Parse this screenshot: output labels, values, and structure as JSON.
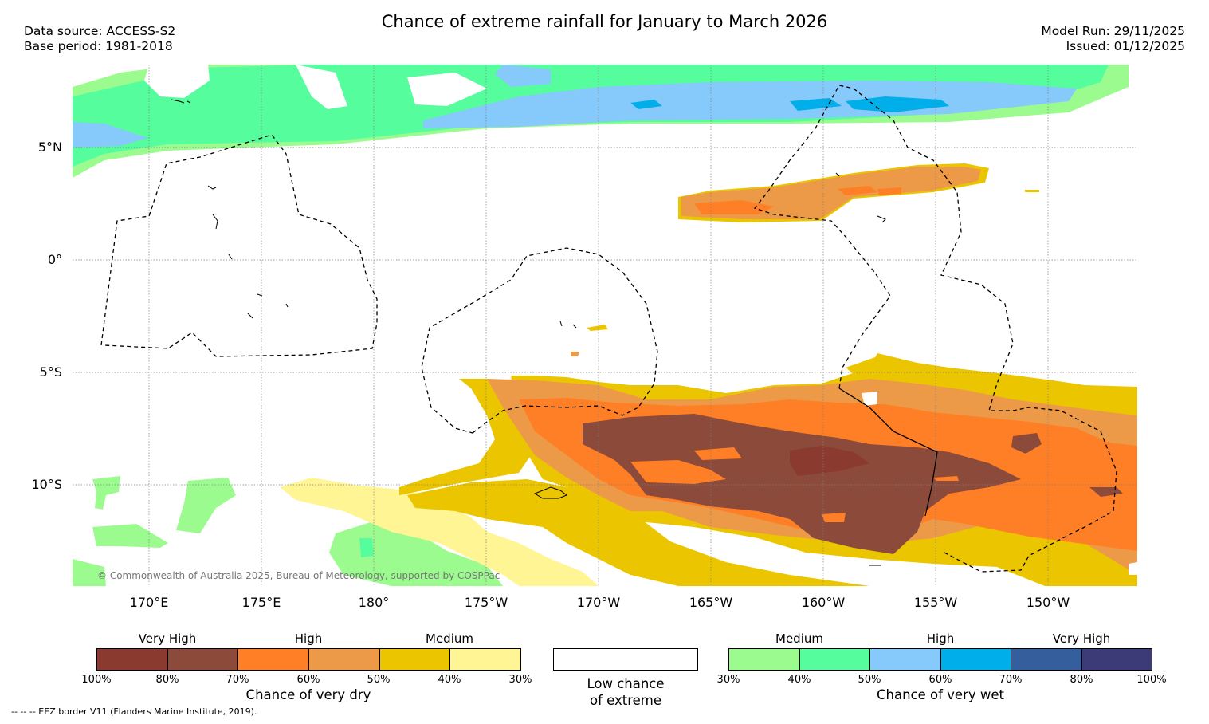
{
  "title": "Chance of extreme rainfall for January to March 2026",
  "data_source": "Data source: ACCESS-S2",
  "base_period": "Base period: 1981-2018",
  "model_run": "Model Run: 29/11/2025",
  "issued": "Issued: 01/12/2025",
  "copyright": "© Commonwealth of Australia 2025, Bureau of Meteorology, supported by COSPPac",
  "footnote": "--  --  -- EEZ border V11 (Flanders Marine Institute, 2019).",
  "lat_labels": [
    "5°N",
    "0°",
    "5°S",
    "10°S"
  ],
  "lon_labels": [
    "170°E",
    "175°E",
    "180°",
    "175°W",
    "170°W",
    "165°W",
    "160°W",
    "155°W",
    "150°W"
  ],
  "legend_dry": {
    "title": "Chance of very dry",
    "categories": [
      "Very High",
      "High",
      "Medium"
    ],
    "ticks": [
      "100%",
      "80%",
      "70%",
      "60%",
      "50%",
      "40%",
      "30%"
    ],
    "colors": [
      "#8b3a2f",
      "#8b4a3a",
      "#ff7f27",
      "#ec9a48",
      "#ebc600",
      "#fff595"
    ]
  },
  "legend_none": {
    "title_line1": "Low chance",
    "title_line2": "of extreme",
    "color": "#ffffff"
  },
  "legend_wet": {
    "title": "Chance of very wet",
    "categories": [
      "Medium",
      "High",
      "Very High"
    ],
    "ticks": [
      "30%",
      "40%",
      "50%",
      "60%",
      "70%",
      "80%",
      "100%"
    ],
    "colors": [
      "#9cfb8f",
      "#56fd9d",
      "#86c9fb",
      "#00aeea",
      "#355f9c",
      "#3d3a78"
    ]
  }
}
